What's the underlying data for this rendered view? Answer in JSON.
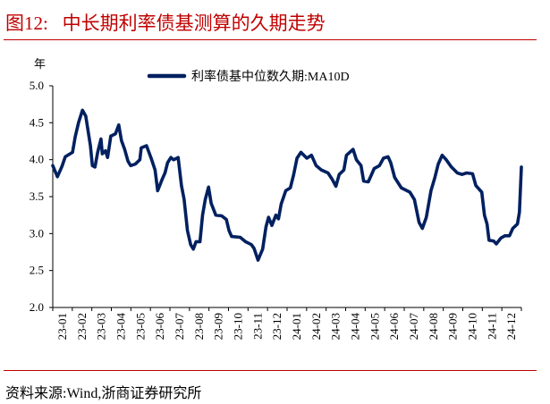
{
  "title": "图12:   中长期利率债基测算的久期走势",
  "source": "资料来源:Wind,浙商证券研究所",
  "colors": {
    "title": "#c00000",
    "series": "#002060",
    "rule": "#c00000"
  },
  "chart_data": {
    "type": "line",
    "title": "",
    "ylabel": "年",
    "xlabel": "",
    "ylim": [
      2.0,
      5.0
    ],
    "yticks": [
      "2.0",
      "2.5",
      "3.0",
      "3.5",
      "4.0",
      "4.5",
      "5.0"
    ],
    "xlim": [
      "2023-01-01",
      "2024-12-11"
    ],
    "xticks": [
      "23-01",
      "23-02",
      "23-03",
      "23-04",
      "23-05",
      "23-06",
      "23-07",
      "23-08",
      "23-09",
      "23-10",
      "23-11",
      "23-12",
      "24-01",
      "24-02",
      "24-03",
      "24-04",
      "24-05",
      "24-06",
      "24-07",
      "24-08",
      "24-09",
      "24-10",
      "24-11",
      "24-12"
    ],
    "grid": false,
    "legend_position": "top-center",
    "series": [
      {
        "name": "利率债基中位数久期:MA10D",
        "color": "#002060",
        "points": [
          [
            "2023-01-01",
            3.92
          ],
          [
            "2023-01-08",
            3.77
          ],
          [
            "2023-01-15",
            3.91
          ],
          [
            "2023-01-20",
            4.04
          ],
          [
            "2023-01-31",
            4.1
          ],
          [
            "2023-02-04",
            4.31
          ],
          [
            "2023-02-09",
            4.5
          ],
          [
            "2023-02-15",
            4.67
          ],
          [
            "2023-02-20",
            4.59
          ],
          [
            "2023-02-27",
            4.19
          ],
          [
            "2023-03-02",
            3.92
          ],
          [
            "2023-03-06",
            3.9
          ],
          [
            "2023-03-10",
            4.1
          ],
          [
            "2023-03-15",
            4.28
          ],
          [
            "2023-03-17",
            4.08
          ],
          [
            "2023-03-22",
            4.12
          ],
          [
            "2023-03-25",
            4.03
          ],
          [
            "2023-03-27",
            4.14
          ],
          [
            "2023-03-30",
            4.32
          ],
          [
            "2023-04-06",
            4.35
          ],
          [
            "2023-04-11",
            4.47
          ],
          [
            "2023-04-15",
            4.26
          ],
          [
            "2023-04-20",
            4.14
          ],
          [
            "2023-04-25",
            3.98
          ],
          [
            "2023-04-29",
            3.92
          ],
          [
            "2023-05-06",
            3.94
          ],
          [
            "2023-05-13",
            4.0
          ],
          [
            "2023-05-15",
            4.16
          ],
          [
            "2023-05-23",
            4.19
          ],
          [
            "2023-05-30",
            4.02
          ],
          [
            "2023-06-05",
            3.86
          ],
          [
            "2023-06-09",
            3.58
          ],
          [
            "2023-06-16",
            3.74
          ],
          [
            "2023-06-20",
            3.82
          ],
          [
            "2023-06-24",
            3.96
          ],
          [
            "2023-06-29",
            4.03
          ],
          [
            "2023-07-03",
            4.0
          ],
          [
            "2023-07-10",
            4.03
          ],
          [
            "2023-07-15",
            3.65
          ],
          [
            "2023-07-19",
            3.46
          ],
          [
            "2023-07-24",
            3.04
          ],
          [
            "2023-07-29",
            2.85
          ],
          [
            "2023-08-02",
            2.79
          ],
          [
            "2023-08-06",
            2.89
          ],
          [
            "2023-08-12",
            2.89
          ],
          [
            "2023-08-16",
            3.25
          ],
          [
            "2023-08-20",
            3.46
          ],
          [
            "2023-08-25",
            3.63
          ],
          [
            "2023-08-29",
            3.41
          ],
          [
            "2023-09-05",
            3.25
          ],
          [
            "2023-09-14",
            3.24
          ],
          [
            "2023-09-21",
            3.19
          ],
          [
            "2023-09-25",
            3.04
          ],
          [
            "2023-09-29",
            2.96
          ],
          [
            "2023-10-12",
            2.95
          ],
          [
            "2023-10-20",
            2.89
          ],
          [
            "2023-10-29",
            2.85
          ],
          [
            "2023-11-02",
            2.8
          ],
          [
            "2023-11-08",
            2.64
          ],
          [
            "2023-11-15",
            2.79
          ],
          [
            "2023-11-20",
            3.09
          ],
          [
            "2023-11-24",
            3.22
          ],
          [
            "2023-11-29",
            3.11
          ],
          [
            "2023-12-05",
            3.25
          ],
          [
            "2023-12-09",
            3.2
          ],
          [
            "2023-12-13",
            3.4
          ],
          [
            "2023-12-20",
            3.58
          ],
          [
            "2023-12-27",
            3.62
          ],
          [
            "2024-01-01",
            3.8
          ],
          [
            "2024-01-06",
            4.02
          ],
          [
            "2024-01-12",
            4.1
          ],
          [
            "2024-01-21",
            4.02
          ],
          [
            "2024-01-28",
            4.06
          ],
          [
            "2024-02-04",
            3.92
          ],
          [
            "2024-02-12",
            3.86
          ],
          [
            "2024-02-22",
            3.82
          ],
          [
            "2024-02-28",
            3.74
          ],
          [
            "2024-03-05",
            3.64
          ],
          [
            "2024-03-10",
            3.8
          ],
          [
            "2024-03-17",
            3.86
          ],
          [
            "2024-03-21",
            4.06
          ],
          [
            "2024-03-31",
            4.14
          ],
          [
            "2024-04-05",
            4.0
          ],
          [
            "2024-04-12",
            3.92
          ],
          [
            "2024-04-16",
            3.71
          ],
          [
            "2024-04-23",
            3.7
          ],
          [
            "2024-05-02",
            3.88
          ],
          [
            "2024-05-10",
            3.92
          ],
          [
            "2024-05-16",
            4.02
          ],
          [
            "2024-05-23",
            4.04
          ],
          [
            "2024-05-27",
            3.96
          ],
          [
            "2024-06-02",
            3.76
          ],
          [
            "2024-06-12",
            3.62
          ],
          [
            "2024-06-25",
            3.56
          ],
          [
            "2024-07-02",
            3.46
          ],
          [
            "2024-07-09",
            3.15
          ],
          [
            "2024-07-14",
            3.07
          ],
          [
            "2024-07-20",
            3.22
          ],
          [
            "2024-07-27",
            3.58
          ],
          [
            "2024-08-02",
            3.76
          ],
          [
            "2024-08-07",
            3.94
          ],
          [
            "2024-08-13",
            4.06
          ],
          [
            "2024-08-19",
            4.0
          ],
          [
            "2024-08-27",
            3.9
          ],
          [
            "2024-09-05",
            3.82
          ],
          [
            "2024-09-12",
            3.8
          ],
          [
            "2024-09-19",
            3.82
          ],
          [
            "2024-09-28",
            3.81
          ],
          [
            "2024-10-03",
            3.65
          ],
          [
            "2024-10-12",
            3.56
          ],
          [
            "2024-10-16",
            3.25
          ],
          [
            "2024-10-20",
            3.13
          ],
          [
            "2024-10-23",
            2.91
          ],
          [
            "2024-10-30",
            2.9
          ],
          [
            "2024-11-03",
            2.86
          ],
          [
            "2024-11-10",
            2.94
          ],
          [
            "2024-11-16",
            2.97
          ],
          [
            "2024-11-23",
            2.97
          ],
          [
            "2024-11-28",
            3.07
          ],
          [
            "2024-12-05",
            3.13
          ],
          [
            "2024-12-08",
            3.29
          ],
          [
            "2024-12-11",
            3.9
          ]
        ]
      }
    ]
  }
}
